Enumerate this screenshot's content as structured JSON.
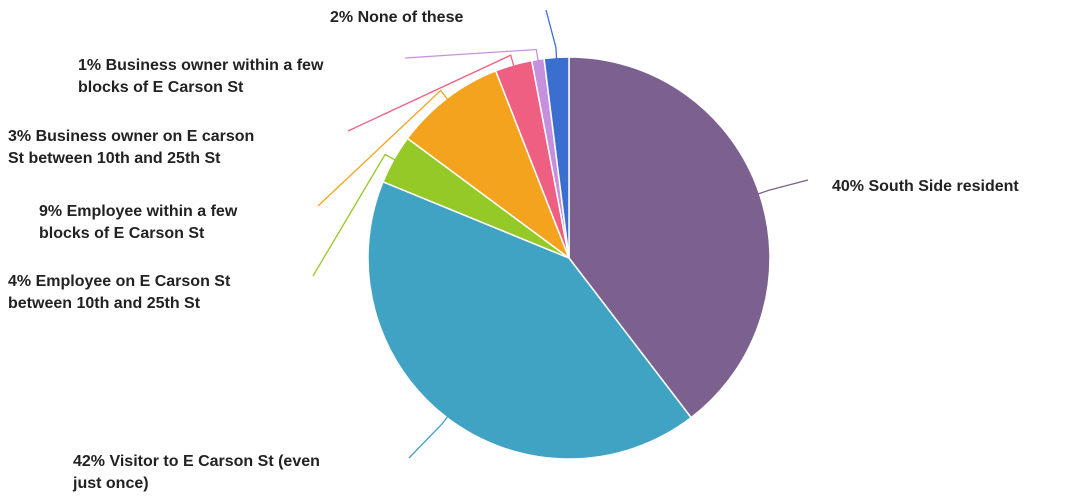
{
  "chart_data": {
    "type": "pie",
    "title": "",
    "slices": [
      {
        "label_lines": [
          "40% South Side resident"
        ],
        "percent_label": "40%",
        "category": "South Side resident",
        "value": 40,
        "color": "#7B6090"
      },
      {
        "label_lines": [
          "42% Visitor to E Carson St (even",
          "just once)"
        ],
        "percent_label": "42%",
        "category": "Visitor to E Carson St (even just once)",
        "value": 42,
        "color": "#41A3C3"
      },
      {
        "label_lines": [
          "4% Employee on E Carson St",
          "between 10th and 25th St"
        ],
        "percent_label": "4%",
        "category": "Employee on E Carson St between 10th and 25th St",
        "value": 4,
        "color": "#94C927"
      },
      {
        "label_lines": [
          "9% Employee within a few",
          "blocks of E Carson St"
        ],
        "percent_label": "9%",
        "category": "Employee within a few blocks of E Carson St",
        "value": 9,
        "color": "#F3A31D"
      },
      {
        "label_lines": [
          "3% Business owner on E carson",
          "St between 10th and 25th St"
        ],
        "percent_label": "3%",
        "category": "Business owner on E carson St between 10th and 25th St",
        "value": 3,
        "color": "#EE5F82"
      },
      {
        "label_lines": [
          "1% Business owner within a few",
          "blocks of E Carson St"
        ],
        "percent_label": "1%",
        "category": "Business owner within a few blocks of E Carson St",
        "value": 1,
        "color": "#C591DE"
      },
      {
        "label_lines": [
          "2% None of these"
        ],
        "percent_label": "2%",
        "category": "None of these",
        "value": 2,
        "color": "#3A6FD0"
      }
    ],
    "legend": "none"
  }
}
